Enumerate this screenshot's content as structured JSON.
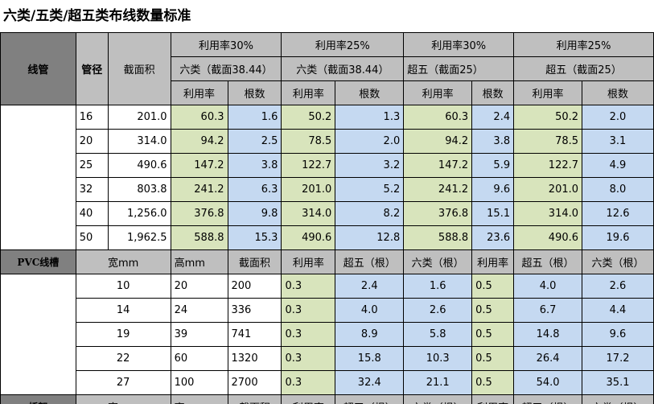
{
  "title": "六类/五类/超五类布线数量标准",
  "header": {
    "group_headers": [
      "利用率30%",
      "利用率25%",
      "利用率30%",
      "利用率25%"
    ],
    "sub_headers": [
      "六类（截面38.44）",
      "六类（截面38.44）",
      "超五（截面25）",
      "超五（截面25）"
    ],
    "col_pipe": "线管",
    "col_diameter": "管径",
    "col_area": "截面积",
    "col_ratio": "利用率",
    "col_count": "根数"
  },
  "pipe_rows": [
    {
      "d": "16",
      "area": "201.0",
      "v1": "60.3",
      "c1": "1.6",
      "v2": "50.2",
      "c2": "1.3",
      "v3": "60.3",
      "c3": "2.4",
      "v4": "50.2",
      "c4": "2.0"
    },
    {
      "d": "20",
      "area": "314.0",
      "v1": "94.2",
      "c1": "2.5",
      "v2": "78.5",
      "c2": "2.0",
      "v3": "94.2",
      "c3": "3.8",
      "v4": "78.5",
      "c4": "3.1"
    },
    {
      "d": "25",
      "area": "490.6",
      "v1": "147.2",
      "c1": "3.8",
      "v2": "122.7",
      "c2": "3.2",
      "v3": "147.2",
      "c3": "5.9",
      "v4": "122.7",
      "c4": "4.9"
    },
    {
      "d": "32",
      "area": "803.8",
      "v1": "241.2",
      "c1": "6.3",
      "v2": "201.0",
      "c2": "5.2",
      "v3": "241.2",
      "c3": "9.6",
      "v4": "201.0",
      "c4": "8.0"
    },
    {
      "d": "40",
      "area": "1,256.0",
      "v1": "376.8",
      "c1": "9.8",
      "v2": "314.0",
      "c2": "8.2",
      "v3": "376.8",
      "c3": "15.1",
      "v4": "314.0",
      "c4": "12.6"
    },
    {
      "d": "50",
      "area": "1,962.5",
      "v1": "588.8",
      "c1": "15.3",
      "v2": "490.6",
      "c2": "12.8",
      "v3": "588.8",
      "c3": "23.6",
      "v4": "490.6",
      "c4": "19.6"
    }
  ],
  "pvc_header": {
    "label": "PVC线槽",
    "width": "宽mm",
    "height": "高mm",
    "area": "截面积",
    "ratio1": "利用率",
    "super5_1": "超五（根）",
    "cat6_1": "六类（根）",
    "ratio2": "利用率",
    "super5_2": "超五（根）",
    "cat6_2": "六类（根）"
  },
  "pvc_rows": [
    {
      "w": "10",
      "h": "20",
      "area": "200",
      "r1": "0.3",
      "s1": "2.4",
      "k1": "1.6",
      "r2": "0.5",
      "s2": "4.0",
      "k2": "2.6"
    },
    {
      "w": "14",
      "h": "24",
      "area": "336",
      "r1": "0.3",
      "s1": "4.0",
      "k1": "2.6",
      "r2": "0.5",
      "s2": "6.7",
      "k2": "4.4"
    },
    {
      "w": "19",
      "h": "39",
      "area": "741",
      "r1": "0.3",
      "s1": "8.9",
      "k1": "5.8",
      "r2": "0.5",
      "s2": "14.8",
      "k2": "9.6"
    },
    {
      "w": "22",
      "h": "60",
      "area": "1320",
      "r1": "0.3",
      "s1": "15.8",
      "k1": "10.3",
      "r2": "0.5",
      "s2": "26.4",
      "k2": "17.2"
    },
    {
      "w": "27",
      "h": "100",
      "area": "2700",
      "r1": "0.3",
      "s1": "32.4",
      "k1": "21.1",
      "r2": "0.5",
      "s2": "54.0",
      "k2": "35.1"
    }
  ],
  "tray_header": {
    "label": "桥架",
    "width": "宽mm",
    "height": "高mm",
    "area": "截面积",
    "ratio1": "利用率",
    "super5_1": "超五（根）",
    "cat6_1": "六类（根）",
    "ratio2": "利用率",
    "super5_2": "超五（根）",
    "cat6_2": "六类（根）"
  }
}
